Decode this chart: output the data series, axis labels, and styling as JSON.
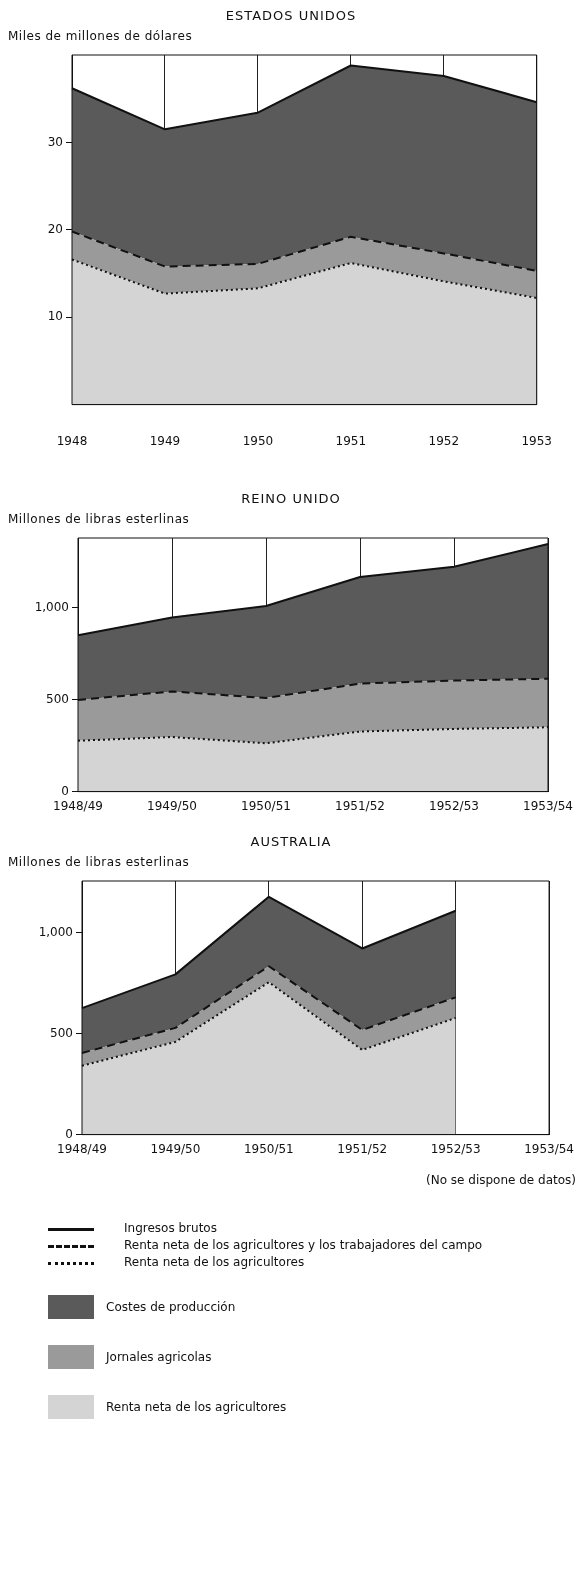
{
  "chart_data": [
    {
      "type": "area",
      "title": "ESTADOS UNIDOS",
      "ylabel": "Miles de millones de dólares",
      "stacked": true,
      "grid": "x",
      "categories": [
        "1948",
        "1949",
        "1950",
        "1951",
        "1952",
        "1953"
      ],
      "ylim": [
        0,
        40
      ],
      "yticks": [
        10,
        20,
        30
      ],
      "series": [
        {
          "color": "#d4d4d4",
          "line_style": "dotted",
          "values": [
            16.6,
            12.7,
            13.3,
            16.2,
            14.1,
            12.2
          ]
        },
        {
          "color": "#9a9a9a",
          "line_style": "dashed",
          "values": [
            3.2,
            3.1,
            2.8,
            3.0,
            3.2,
            3.1
          ]
        },
        {
          "color": "#5a5a5a",
          "line_style": "solid",
          "values": [
            16.4,
            15.7,
            17.3,
            19.6,
            20.3,
            19.3
          ]
        }
      ]
    },
    {
      "type": "area",
      "title": "REINO UNIDO",
      "ylabel": "Millones de libras esterlinas",
      "stacked": true,
      "grid": "x",
      "categories": [
        "1948/49",
        "1949/50",
        "1950/51",
        "1951/52",
        "1952/53",
        "1953/54"
      ],
      "ylim": [
        0,
        1380
      ],
      "yticks": [
        0,
        500,
        {
          "value": 1000,
          "label": "1,000"
        }
      ],
      "series": [
        {
          "color": "#d4d4d4",
          "line_style": "dotted",
          "values": [
            277,
            297,
            263,
            327,
            341,
            350
          ]
        },
        {
          "color": "#9a9a9a",
          "line_style": "dashed",
          "values": [
            222,
            248,
            246,
            261,
            263,
            264
          ]
        },
        {
          "color": "#5a5a5a",
          "line_style": "solid",
          "values": [
            352,
            402,
            501,
            580,
            620,
            733
          ]
        }
      ]
    },
    {
      "type": "area",
      "title": "AUSTRALIA",
      "ylabel": "Millones de libras esterlinas",
      "stacked": true,
      "grid": "x",
      "legend": "bottom",
      "categories": [
        "1948/49",
        "1949/50",
        "1950/51",
        "1951/52",
        "1952/53",
        "1953/54"
      ],
      "ylim": [
        0,
        1255
      ],
      "yticks": [
        0,
        500,
        {
          "value": 1000,
          "label": "1,000"
        }
      ],
      "series": [
        {
          "name": "Renta neta de los agricultores",
          "color": "#d4d4d4",
          "line_style": "dotted",
          "values": [
            341,
            459,
            754,
            419,
            577,
            null
          ]
        },
        {
          "name": "Jornales agricolas",
          "color": "#9a9a9a",
          "line_style": "dashed",
          "values": [
            63,
            69,
            79,
            99,
            102,
            null
          ]
        },
        {
          "name": "Costes de producción",
          "color": "#5a5a5a",
          "line_style": "solid",
          "values": [
            222,
            265,
            344,
            403,
            429,
            null
          ]
        }
      ],
      "annotations": [
        "(No se dispone de datos)",
        "Ingresos brutos",
        "Renta neta de los agricultores y los trabajadores del campo",
        "Renta neta de los agricultores"
      ]
    }
  ]
}
